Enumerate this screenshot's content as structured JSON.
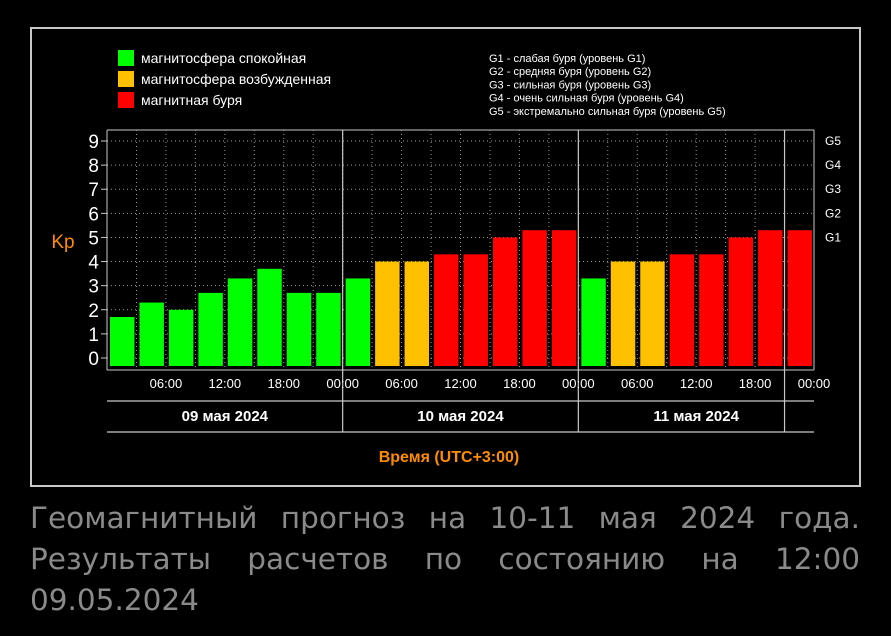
{
  "chart_data": {
    "type": "bar",
    "categories": [
      "09.05 03:00",
      "09.05 06:00",
      "09.05 09:00",
      "09.05 12:00",
      "09.05 15:00",
      "09.05 18:00",
      "09.05 21:00",
      "09.05 24:00",
      "10.05 03:00",
      "10.05 06:00",
      "10.05 09:00",
      "10.05 12:00",
      "10.05 15:00",
      "10.05 18:00",
      "10.05 21:00",
      "10.05 24:00",
      "11.05 03:00",
      "11.05 06:00",
      "11.05 09:00",
      "11.05 12:00",
      "11.05 15:00",
      "11.05 18:00",
      "11.05 21:00",
      "11.05 24:00"
    ],
    "values": [
      1.7,
      2.3,
      2.0,
      2.7,
      3.3,
      3.7,
      2.7,
      2.7,
      3.3,
      4.0,
      4.0,
      4.3,
      4.3,
      5.0,
      5.3,
      5.3,
      3.3,
      4.0,
      4.0,
      4.3,
      4.3,
      5.0,
      5.3,
      5.3
    ],
    "levels": [
      "quiet",
      "quiet",
      "quiet",
      "quiet",
      "quiet",
      "quiet",
      "quiet",
      "quiet",
      "quiet",
      "disturbed",
      "disturbed",
      "storm",
      "storm",
      "storm",
      "storm",
      "storm",
      "quiet",
      "disturbed",
      "disturbed",
      "storm",
      "storm",
      "storm",
      "storm",
      "storm"
    ],
    "ylabel": "Kp",
    "xlabel": "Время (UTC+3:00)",
    "ylim": [
      0,
      9
    ],
    "yticks": [
      "0",
      "1",
      "2",
      "3",
      "4",
      "5",
      "6",
      "7",
      "8",
      "9"
    ],
    "g_scale": [
      {
        "label": "G1",
        "kp": 5
      },
      {
        "label": "G2",
        "kp": 6
      },
      {
        "label": "G3",
        "kp": 7
      },
      {
        "label": "G4",
        "kp": 8
      },
      {
        "label": "G5",
        "kp": 9
      }
    ],
    "time_ticks": [
      "06:00",
      "12:00",
      "18:00",
      "00:00",
      "06:00",
      "12:00",
      "18:00",
      "00:00",
      "06:00",
      "12:00",
      "18:00",
      "00:00"
    ],
    "dates": [
      "09 мая 2024",
      "10 мая 2024",
      "11 мая 2024"
    ],
    "legend": [
      {
        "key": "quiet",
        "label": "магнитосфера спокойная",
        "color": "#00ff00"
      },
      {
        "key": "disturbed",
        "label": "магнитосфера возбужденная",
        "color": "#ffc000"
      },
      {
        "key": "storm",
        "label": "магнитная буря",
        "color": "#ff0000"
      }
    ],
    "storm_legend": [
      "G1 - слабая буря (уровень G1)",
      "G2 - средняя буря (уровень G2)",
      "G3 - сильная буря (уровень G3)",
      "G4 - очень сильная буря (уровень G4)",
      "G5 - экстремально сильная буря (уровень G5)"
    ],
    "grid": true,
    "legend_position": "top-left",
    "colors": {
      "background": "#000000",
      "frame": "#c8c8c8",
      "grid": "#9a9a9a",
      "text": "#ffffff",
      "axis_title": "#ff8c00"
    }
  },
  "caption": {
    "line1": "Геомагнитный прогноз на 10-11 мая 2024 года.",
    "line2": "Результаты расчетов по состоянию на 12:00",
    "line3": "09.05.2024"
  }
}
